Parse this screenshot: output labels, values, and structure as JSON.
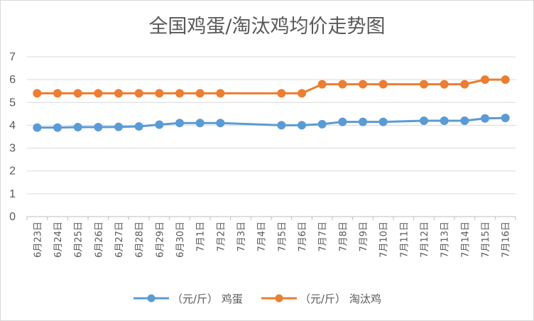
{
  "chart_data": {
    "type": "line",
    "title": "全国鸡蛋/淘汰鸡均价走势图",
    "xlabel": "",
    "ylabel": "",
    "ylim": [
      0,
      7
    ],
    "yticks": [
      "0",
      "1",
      "2",
      "3",
      "4",
      "5",
      "6",
      "7"
    ],
    "grid": "horizontal",
    "legend_position": "bottom",
    "categories": [
      "6月23日",
      "6月24日",
      "6月25日",
      "6月26日",
      "6月27日",
      "6月28日",
      "6月29日",
      "6月30日",
      "7月1日",
      "7月2日",
      "7月3日",
      "7月4日",
      "7月5日",
      "7月6日",
      "7月7日",
      "7月8日",
      "7月9日",
      "7月10日",
      "7月11日",
      "7月12日",
      "7月13日",
      "7月14日",
      "7月15日",
      "7月16日"
    ],
    "series": [
      {
        "name": "（元/斤） 鸡蛋",
        "color": "#5b9bd5",
        "values": [
          3.9,
          3.9,
          3.92,
          3.92,
          3.93,
          3.95,
          4.03,
          4.1,
          4.1,
          4.1,
          null,
          null,
          4.0,
          4.0,
          4.05,
          4.15,
          4.15,
          4.15,
          null,
          4.2,
          4.2,
          4.2,
          4.3,
          4.32
        ]
      },
      {
        "name": "（元/斤） 淘汰鸡",
        "color": "#ed7d31",
        "values": [
          5.4,
          5.4,
          5.4,
          5.4,
          5.4,
          5.4,
          5.4,
          5.4,
          5.4,
          5.4,
          null,
          null,
          5.4,
          5.4,
          5.8,
          5.8,
          5.8,
          5.8,
          null,
          5.8,
          5.8,
          5.8,
          6.0,
          6.0
        ]
      }
    ]
  }
}
